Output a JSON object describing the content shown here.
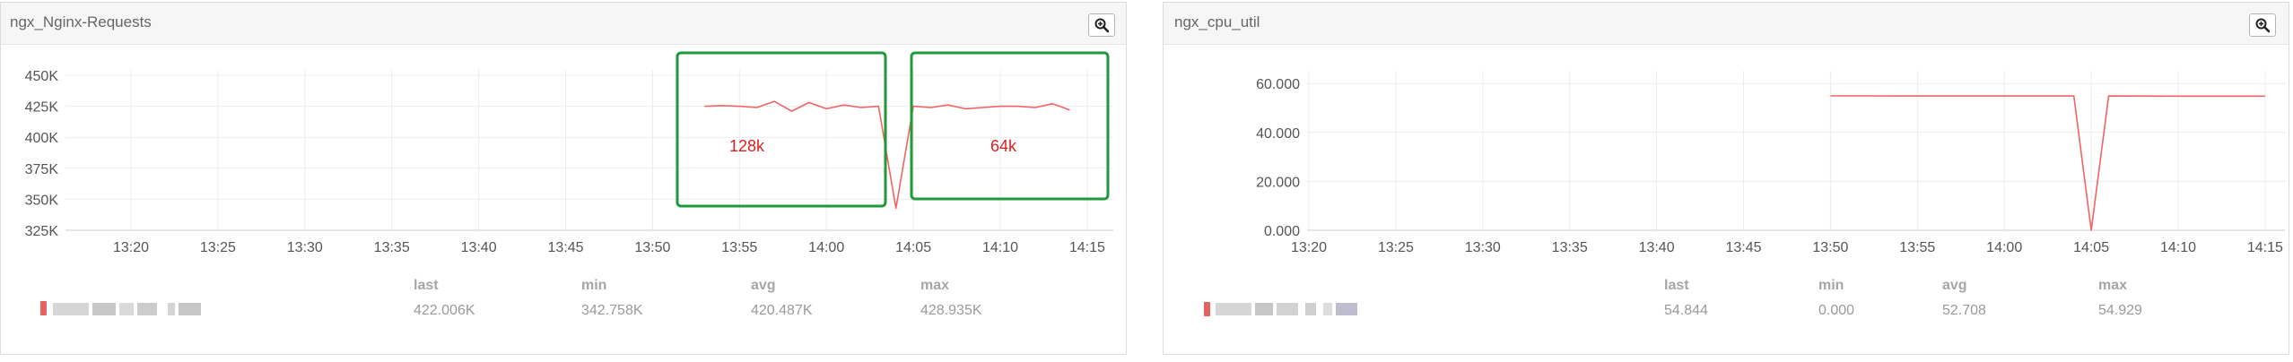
{
  "panels": [
    {
      "title": "ngx_Nginx-Requests",
      "zoom_icon": "zoom-in-icon",
      "line_color": "#f26464",
      "annotation_color": "#1e9a3a",
      "annotation_text_color": "#e02020",
      "x_ticks": [
        "13:20",
        "13:25",
        "13:30",
        "13:35",
        "13:40",
        "13:45",
        "13:50",
        "13:55",
        "14:00",
        "14:05",
        "14:10",
        "14:15"
      ],
      "y_ticks": [
        "325K",
        "350K",
        "375K",
        "400K",
        "425K",
        "450K"
      ],
      "annotations": [
        "128k",
        "64k"
      ],
      "stats_labels": [
        "last",
        "min",
        "avg",
        "max"
      ],
      "stats_values": [
        "422.006K",
        "342.758K",
        "420.487K",
        "428.935K"
      ]
    },
    {
      "title": "ngx_cpu_util",
      "zoom_icon": "zoom-in-icon",
      "line_color": "#f26464",
      "x_ticks": [
        "13:20",
        "13:25",
        "13:30",
        "13:35",
        "13:40",
        "13:45",
        "13:50",
        "13:55",
        "14:00",
        "14:05",
        "14:10",
        "14:15"
      ],
      "y_ticks": [
        "0.000",
        "20.000",
        "40.000",
        "60.000"
      ],
      "stats_labels": [
        "last",
        "min",
        "avg",
        "max"
      ],
      "stats_values": [
        "54.844",
        "0.000",
        "52.708",
        "54.929"
      ]
    }
  ],
  "chart_data": [
    {
      "type": "line",
      "title": "ngx_Nginx-Requests",
      "ylim": [
        325000,
        450000
      ],
      "xlim": [
        "13:15",
        "14:16"
      ],
      "series": [
        {
          "x": [
            "13:53",
            "13:54",
            "13:55",
            "13:56",
            "13:57",
            "13:58",
            "13:59",
            "14:00",
            "14:01",
            "14:02",
            "14:03",
            "14:04",
            "14:05",
            "14:06",
            "14:07",
            "14:08",
            "14:09",
            "14:10",
            "14:11",
            "14:12",
            "14:13",
            "14:14"
          ],
          "values": [
            425000,
            425500,
            425000,
            424000,
            429000,
            421000,
            428000,
            423000,
            426000,
            424000,
            425000,
            342758,
            425000,
            424000,
            426000,
            423000,
            424000,
            425000,
            425000,
            424000,
            427000,
            422006
          ]
        }
      ]
    },
    {
      "type": "line",
      "title": "ngx_cpu_util",
      "ylim": [
        0,
        63
      ],
      "xlim": [
        "13:15",
        "14:15"
      ],
      "series": [
        {
          "x": [
            "13:50",
            "13:55",
            "14:00",
            "14:04",
            "14:05",
            "14:06",
            "14:10",
            "14:15"
          ],
          "values": [
            54.929,
            54.9,
            54.9,
            54.9,
            0.0,
            54.9,
            54.85,
            54.844
          ]
        }
      ]
    }
  ]
}
